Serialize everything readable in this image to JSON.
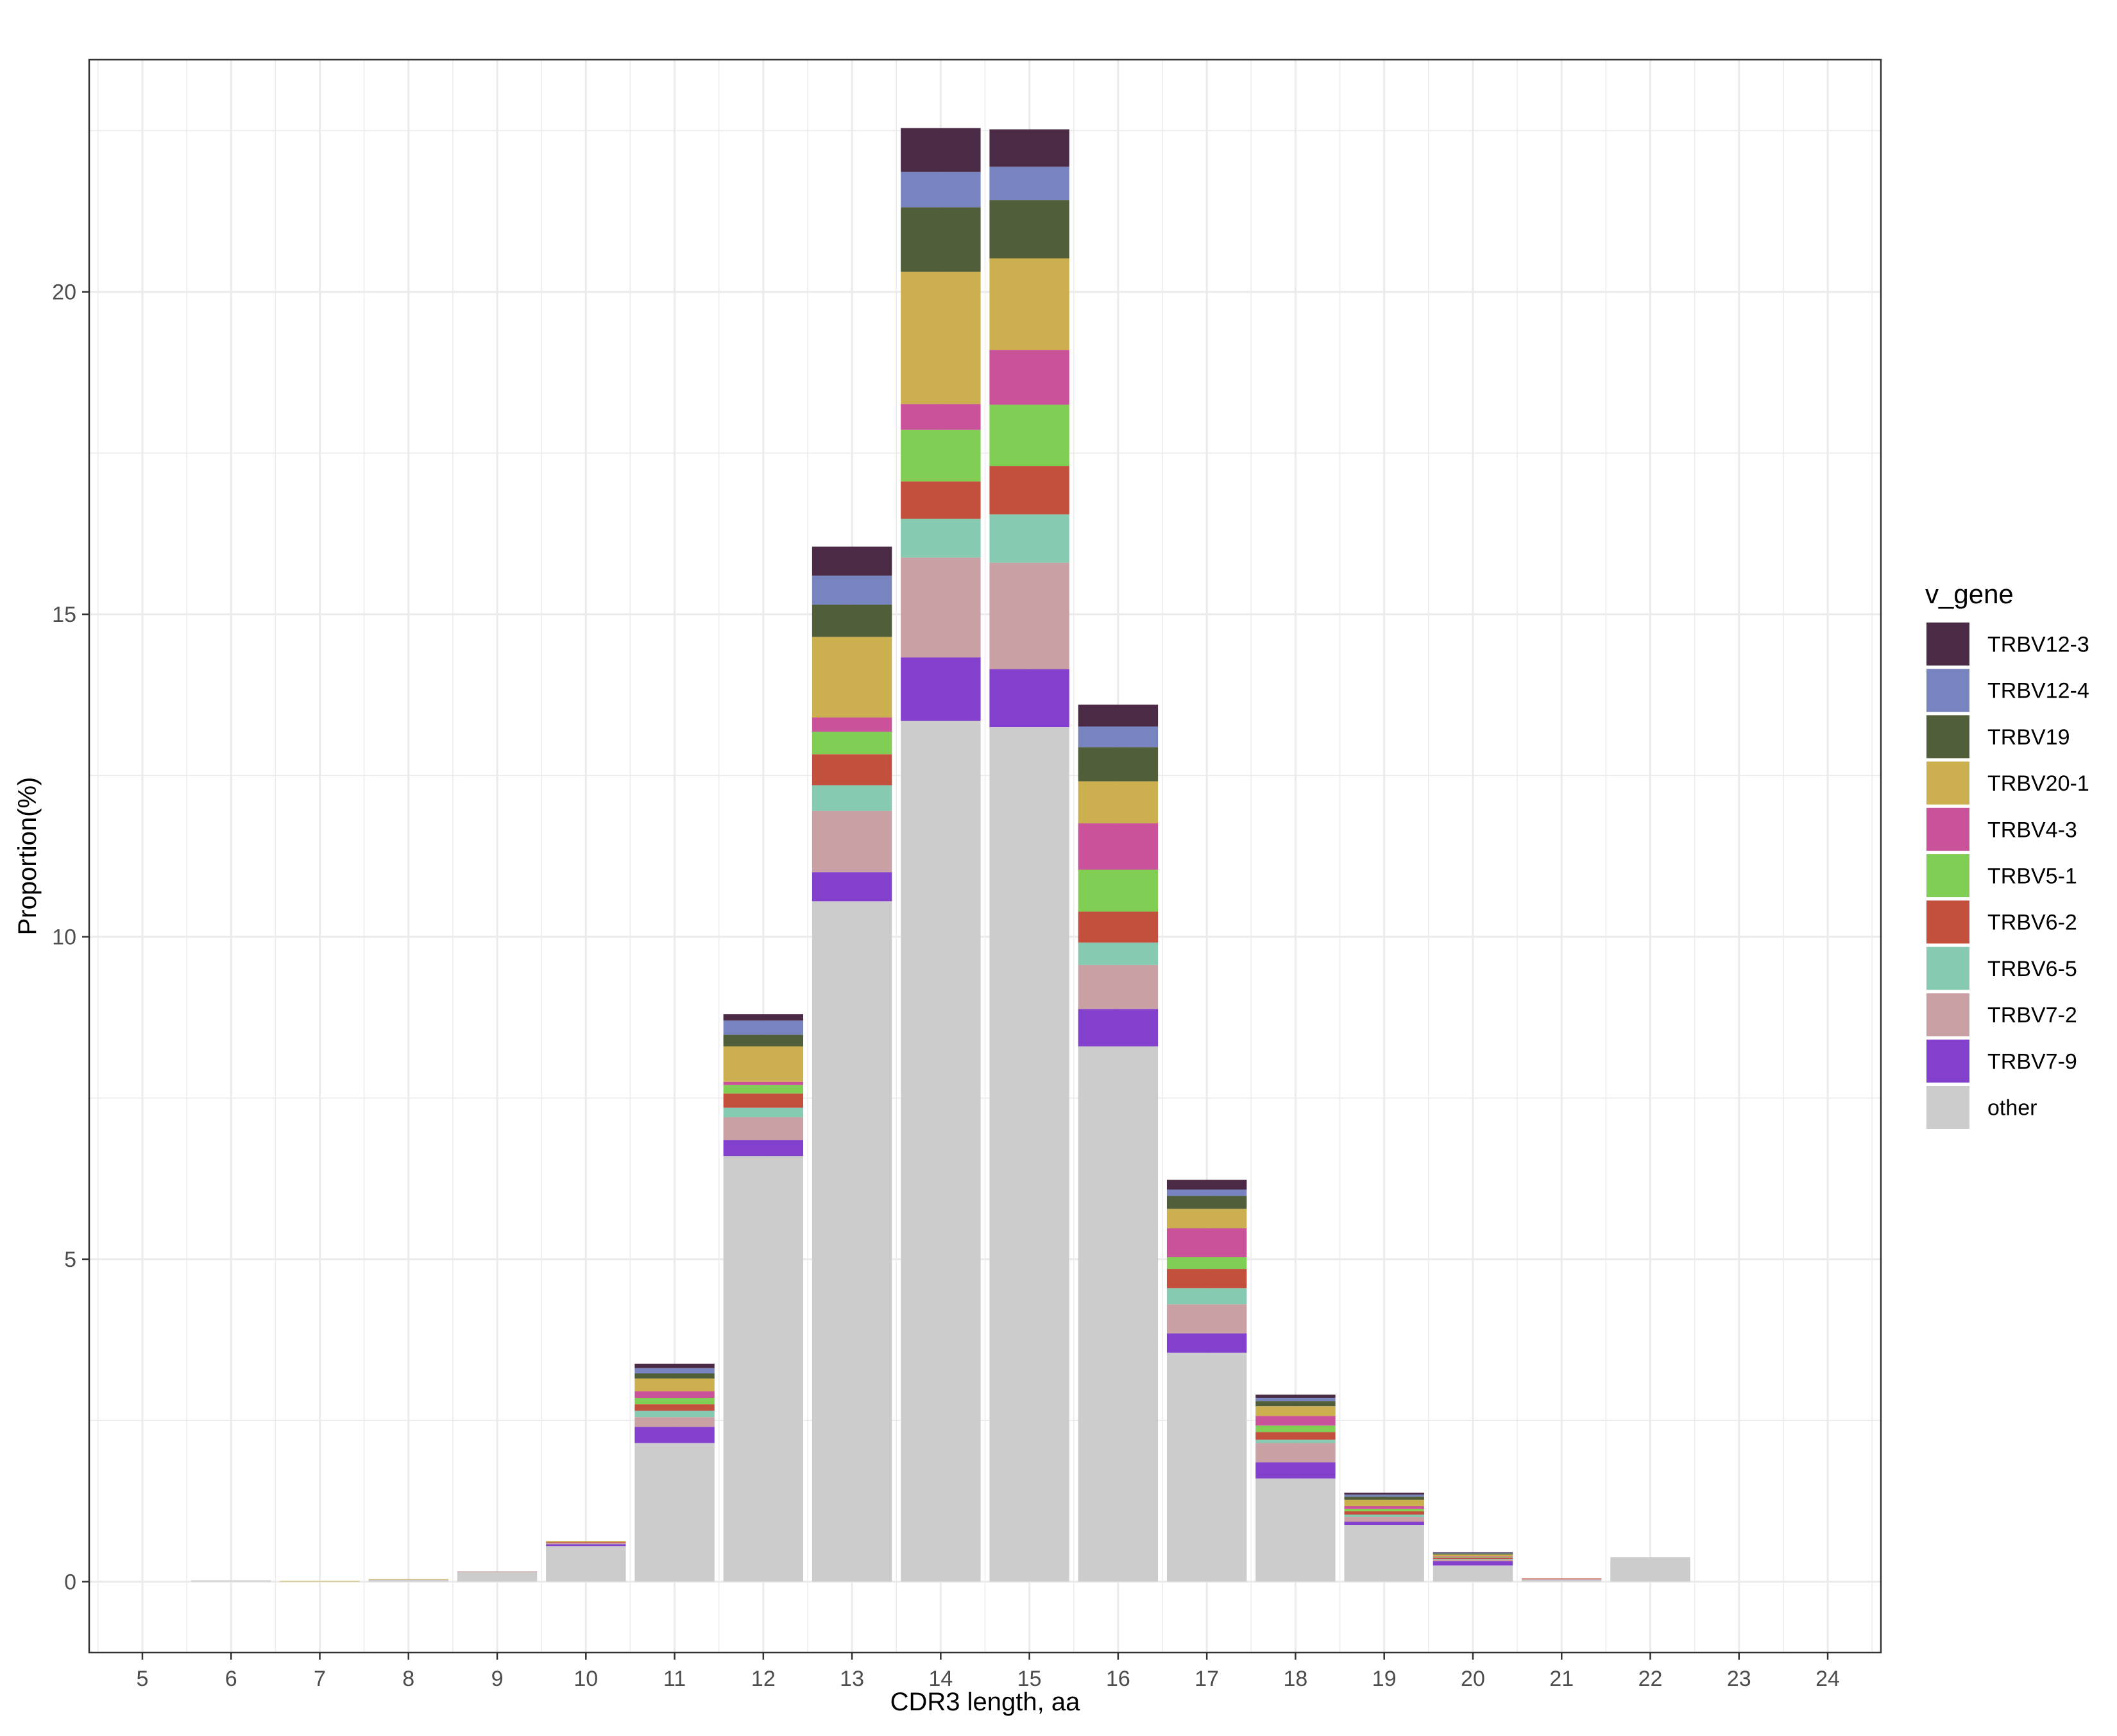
{
  "chart_data": {
    "type": "bar",
    "stacked": true,
    "title": "",
    "xlabel": "CDR3 length, aa",
    "ylabel": "Proportion(%)",
    "ylim": [
      -1.1,
      23.6
    ],
    "y_ticks": [
      0,
      5,
      10,
      15,
      20
    ],
    "grid": true,
    "legend": {
      "title": "v_gene",
      "position": "right"
    },
    "categories": [
      "5",
      "6",
      "7",
      "8",
      "9",
      "10",
      "11",
      "12",
      "13",
      "14",
      "15",
      "16",
      "17",
      "18",
      "19",
      "20",
      "21",
      "22",
      "23",
      "24"
    ],
    "series": [
      {
        "name": "other",
        "color": "#CCCCCC",
        "values": [
          0,
          0.02,
          0,
          0.03,
          0.15,
          0.55,
          2.15,
          6.6,
          10.55,
          13.35,
          13.25,
          8.3,
          3.55,
          1.6,
          0.88,
          0.25,
          0.03,
          0.38,
          0,
          0
        ]
      },
      {
        "name": "TRBV7-9",
        "color": "#8340CC",
        "values": [
          0,
          0,
          0,
          0,
          0,
          0.03,
          0.25,
          0.25,
          0.45,
          0.98,
          0.9,
          0.58,
          0.3,
          0.25,
          0.05,
          0.07,
          0,
          0,
          0,
          0
        ]
      },
      {
        "name": "TRBV7-2",
        "color": "#C9A0A3",
        "values": [
          0,
          0,
          0,
          0,
          0.01,
          0.02,
          0.15,
          0.35,
          0.95,
          1.55,
          1.65,
          0.68,
          0.45,
          0.3,
          0.07,
          0.02,
          0.01,
          0,
          0,
          0
        ]
      },
      {
        "name": "TRBV6-5",
        "color": "#86CAB1",
        "values": [
          0,
          0,
          0,
          0,
          0,
          0,
          0.1,
          0.15,
          0.4,
          0.6,
          0.75,
          0.35,
          0.25,
          0.05,
          0.04,
          0.01,
          0,
          0,
          0,
          0
        ]
      },
      {
        "name": "TRBV6-2",
        "color": "#C2503D",
        "values": [
          0,
          0,
          0,
          0,
          0,
          0.01,
          0.1,
          0.22,
          0.48,
          0.58,
          0.75,
          0.48,
          0.3,
          0.12,
          0.05,
          0.02,
          0.01,
          0,
          0,
          0
        ]
      },
      {
        "name": "TRBV5-1",
        "color": "#80CE53",
        "values": [
          0,
          0,
          0,
          0,
          0,
          0,
          0.1,
          0.13,
          0.35,
          0.8,
          0.95,
          0.65,
          0.18,
          0.1,
          0.04,
          0.01,
          0,
          0,
          0,
          0
        ]
      },
      {
        "name": "TRBV4-3",
        "color": "#C9529A",
        "values": [
          0,
          0,
          0,
          0,
          0,
          0,
          0.1,
          0.05,
          0.22,
          0.4,
          0.85,
          0.72,
          0.45,
          0.15,
          0.04,
          0.01,
          0,
          0,
          0,
          0
        ]
      },
      {
        "name": "TRBV20-1",
        "color": "#CCAF4F",
        "values": [
          0,
          0,
          0.01,
          0.01,
          0,
          0.02,
          0.2,
          0.55,
          1.25,
          2.05,
          1.42,
          0.65,
          0.3,
          0.15,
          0.1,
          0.03,
          0,
          0,
          0,
          0
        ]
      },
      {
        "name": "TRBV19",
        "color": "#505E39",
        "values": [
          0,
          0,
          0,
          0,
          0,
          0,
          0.08,
          0.18,
          0.5,
          1.0,
          0.9,
          0.53,
          0.2,
          0.08,
          0.05,
          0.02,
          0,
          0,
          0,
          0
        ]
      },
      {
        "name": "TRBV12-4",
        "color": "#7884C0",
        "values": [
          0,
          0,
          0,
          0,
          0,
          0,
          0.08,
          0.22,
          0.45,
          0.55,
          0.52,
          0.32,
          0.1,
          0.05,
          0.03,
          0.01,
          0,
          0,
          0,
          0
        ]
      },
      {
        "name": "TRBV12-3",
        "color": "#4A2A45",
        "values": [
          0,
          0,
          0,
          0,
          0,
          0,
          0.07,
          0.1,
          0.45,
          0.68,
          0.58,
          0.34,
          0.15,
          0.05,
          0.03,
          0.01,
          0,
          0,
          0,
          0
        ]
      }
    ]
  }
}
